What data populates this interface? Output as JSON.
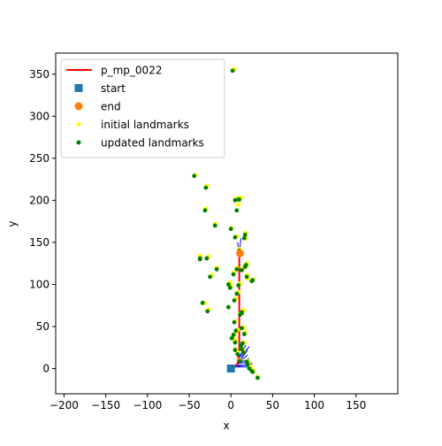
{
  "chart_data": {
    "type": "scatter",
    "title": "",
    "xlabel": "x",
    "ylabel": "y",
    "xlim": [
      -210,
      200
    ],
    "ylim": [
      -30,
      375
    ],
    "x_ticks": [
      -200,
      -150,
      -100,
      -50,
      0,
      50,
      100,
      150
    ],
    "y_ticks": [
      0,
      50,
      100,
      150,
      200,
      250,
      300,
      350
    ],
    "x_tick_labels": [
      "−200",
      "−150",
      "−100",
      "−50",
      "0",
      "50",
      "100",
      "150"
    ],
    "y_tick_labels": [
      "0",
      "50",
      "100",
      "150",
      "200",
      "250",
      "300",
      "350"
    ],
    "grid": false,
    "legend_position": "top-left",
    "legend": [
      {
        "label": "p_mp_0022",
        "kind": "line",
        "color": "#ff0000"
      },
      {
        "label": "start",
        "kind": "square",
        "color": "#1f77b4"
      },
      {
        "label": "end",
        "kind": "circle",
        "color": "#ff7f0e"
      },
      {
        "label": "initial landmarks",
        "kind": "dot",
        "color": "#ffff00"
      },
      {
        "label": "updated landmarks",
        "kind": "dot",
        "color": "#008000"
      }
    ],
    "path": {
      "name": "p_mp_0022",
      "color": "#ff0000",
      "x": [
        0,
        4,
        8,
        9,
        10,
        10,
        10,
        10,
        10,
        10,
        10,
        10,
        11
      ],
      "y": [
        0,
        2,
        6,
        12,
        25,
        40,
        60,
        80,
        100,
        115,
        125,
        133,
        137
      ]
    },
    "start": {
      "x": 0,
      "y": 0,
      "color": "#1f77b4"
    },
    "end": {
      "x": 11,
      "y": 137,
      "color": "#ff7f0e"
    },
    "landmarks_initial": {
      "color": "#ffff00",
      "x": [
        3,
        -44,
        -30,
        -31,
        -38,
        4,
        8,
        8,
        11,
        -20,
        -1,
        16,
        16,
        6,
        2,
        6,
        9,
        18,
        14,
        18,
        18,
        -38,
        -28,
        19,
        -18,
        10,
        -24,
        -2,
        -1,
        5,
        8,
        25,
        -4,
        14,
        10,
        12,
        -33,
        -28,
        4,
        7,
        14,
        16,
        4,
        15,
        2,
        5,
        12,
        12,
        14,
        7,
        4,
        10,
        18,
        20,
        22,
        26,
        24,
        31
      ],
      "y": [
        355,
        229,
        216,
        189,
        133,
        200,
        202,
        194,
        202,
        171,
        166,
        154,
        160,
        156,
        113,
        119,
        141,
        124,
        118,
        110,
        122,
        132,
        132,
        106,
        119,
        100,
        110,
        101,
        97,
        82,
        90,
        105,
        72,
        68,
        64,
        66,
        77,
        69,
        55,
        45,
        48,
        42,
        41,
        30,
        35,
        32,
        26,
        23,
        20,
        18,
        22,
        9,
        8,
        6,
        1,
        -4,
        -2,
        -11
      ]
    },
    "landmarks_updated": {
      "color": "#008000",
      "x": [
        2,
        -44,
        -30,
        -31,
        -37,
        5,
        9,
        7,
        10,
        -19,
        0,
        16,
        17,
        5,
        3,
        7,
        10,
        18,
        13,
        19,
        17,
        -37,
        -29,
        26,
        -17,
        9,
        -25,
        -3,
        -1,
        4,
        7,
        25,
        -3,
        13,
        11,
        13,
        -34,
        -28,
        4,
        6,
        13,
        16,
        3,
        14,
        1,
        5,
        12,
        13,
        15,
        8,
        5,
        11,
        19,
        20,
        22,
        26,
        25,
        32
      ],
      "y": [
        354,
        229,
        215,
        188,
        130,
        200,
        201,
        188,
        201,
        170,
        166,
        155,
        159,
        156,
        112,
        118,
        140,
        123,
        117,
        109,
        121,
        131,
        131,
        105,
        118,
        99,
        109,
        100,
        96,
        81,
        89,
        104,
        73,
        67,
        64,
        66,
        78,
        68,
        55,
        45,
        48,
        41,
        40,
        30,
        36,
        31,
        27,
        23,
        19,
        17,
        22,
        9,
        8,
        5,
        0,
        -4,
        -3,
        -11
      ]
    },
    "sensor_rays": {
      "color": "#0000ff",
      "segments": [
        [
          [
            10,
            137
          ],
          [
            12,
            155
          ]
        ],
        [
          [
            10,
            137
          ],
          [
            8,
            150
          ]
        ],
        [
          [
            8,
            6
          ],
          [
            20,
            16
          ]
        ],
        [
          [
            8,
            6
          ],
          [
            22,
            12
          ]
        ],
        [
          [
            8,
            6
          ],
          [
            24,
            8
          ]
        ],
        [
          [
            8,
            6
          ],
          [
            20,
            22
          ]
        ],
        [
          [
            9,
            12
          ],
          [
            22,
            26
          ]
        ],
        [
          [
            9,
            12
          ],
          [
            18,
            28
          ]
        ],
        [
          [
            4,
            2
          ],
          [
            26,
            6
          ]
        ],
        [
          [
            4,
            2
          ],
          [
            24,
            2
          ]
        ],
        [
          [
            6,
            4
          ],
          [
            22,
            4
          ]
        ],
        [
          [
            6,
            4
          ],
          [
            18,
            20
          ]
        ]
      ]
    }
  }
}
